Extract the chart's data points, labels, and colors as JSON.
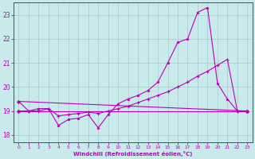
{
  "xlabel": "Windchill (Refroidissement éolien,°C)",
  "xlim": [
    -0.5,
    23.5
  ],
  "ylim": [
    17.7,
    23.5
  ],
  "yticks": [
    18,
    19,
    20,
    21,
    22,
    23
  ],
  "xticks": [
    0,
    1,
    2,
    3,
    4,
    5,
    6,
    7,
    8,
    9,
    10,
    11,
    12,
    13,
    14,
    15,
    16,
    17,
    18,
    19,
    20,
    21,
    22,
    23
  ],
  "bg_color": "#c8eaea",
  "grid_color": "#a0cccc",
  "line_color": "#bb00bb",
  "line1_x": [
    0,
    1,
    2,
    3,
    4,
    5,
    6,
    7,
    8,
    9,
    10,
    11,
    12,
    13,
    14,
    15,
    16,
    17,
    18,
    19,
    20,
    21,
    22,
    23
  ],
  "line1_y": [
    19.4,
    19.0,
    19.1,
    19.1,
    18.4,
    18.65,
    18.7,
    18.85,
    18.3,
    18.85,
    19.3,
    19.5,
    19.65,
    19.85,
    20.2,
    21.0,
    21.85,
    22.0,
    23.1,
    23.3,
    20.15,
    19.5,
    19.0,
    19.0
  ],
  "line2_x": [
    0,
    1,
    2,
    3,
    4,
    5,
    6,
    7,
    8,
    9,
    10,
    11,
    12,
    13,
    14,
    15,
    16,
    17,
    18,
    19,
    20,
    21,
    22,
    23
  ],
  "line2_y": [
    19.0,
    19.0,
    19.0,
    19.1,
    18.8,
    18.85,
    18.9,
    18.95,
    18.9,
    19.0,
    19.1,
    19.2,
    19.35,
    19.5,
    19.65,
    19.8,
    20.0,
    20.2,
    20.45,
    20.65,
    20.9,
    21.15,
    19.0,
    19.0
  ],
  "line3_x": [
    0,
    23
  ],
  "line3_y": [
    19.4,
    19.0
  ],
  "line4_x": [
    0,
    23
  ],
  "line4_y": [
    19.0,
    19.0
  ]
}
